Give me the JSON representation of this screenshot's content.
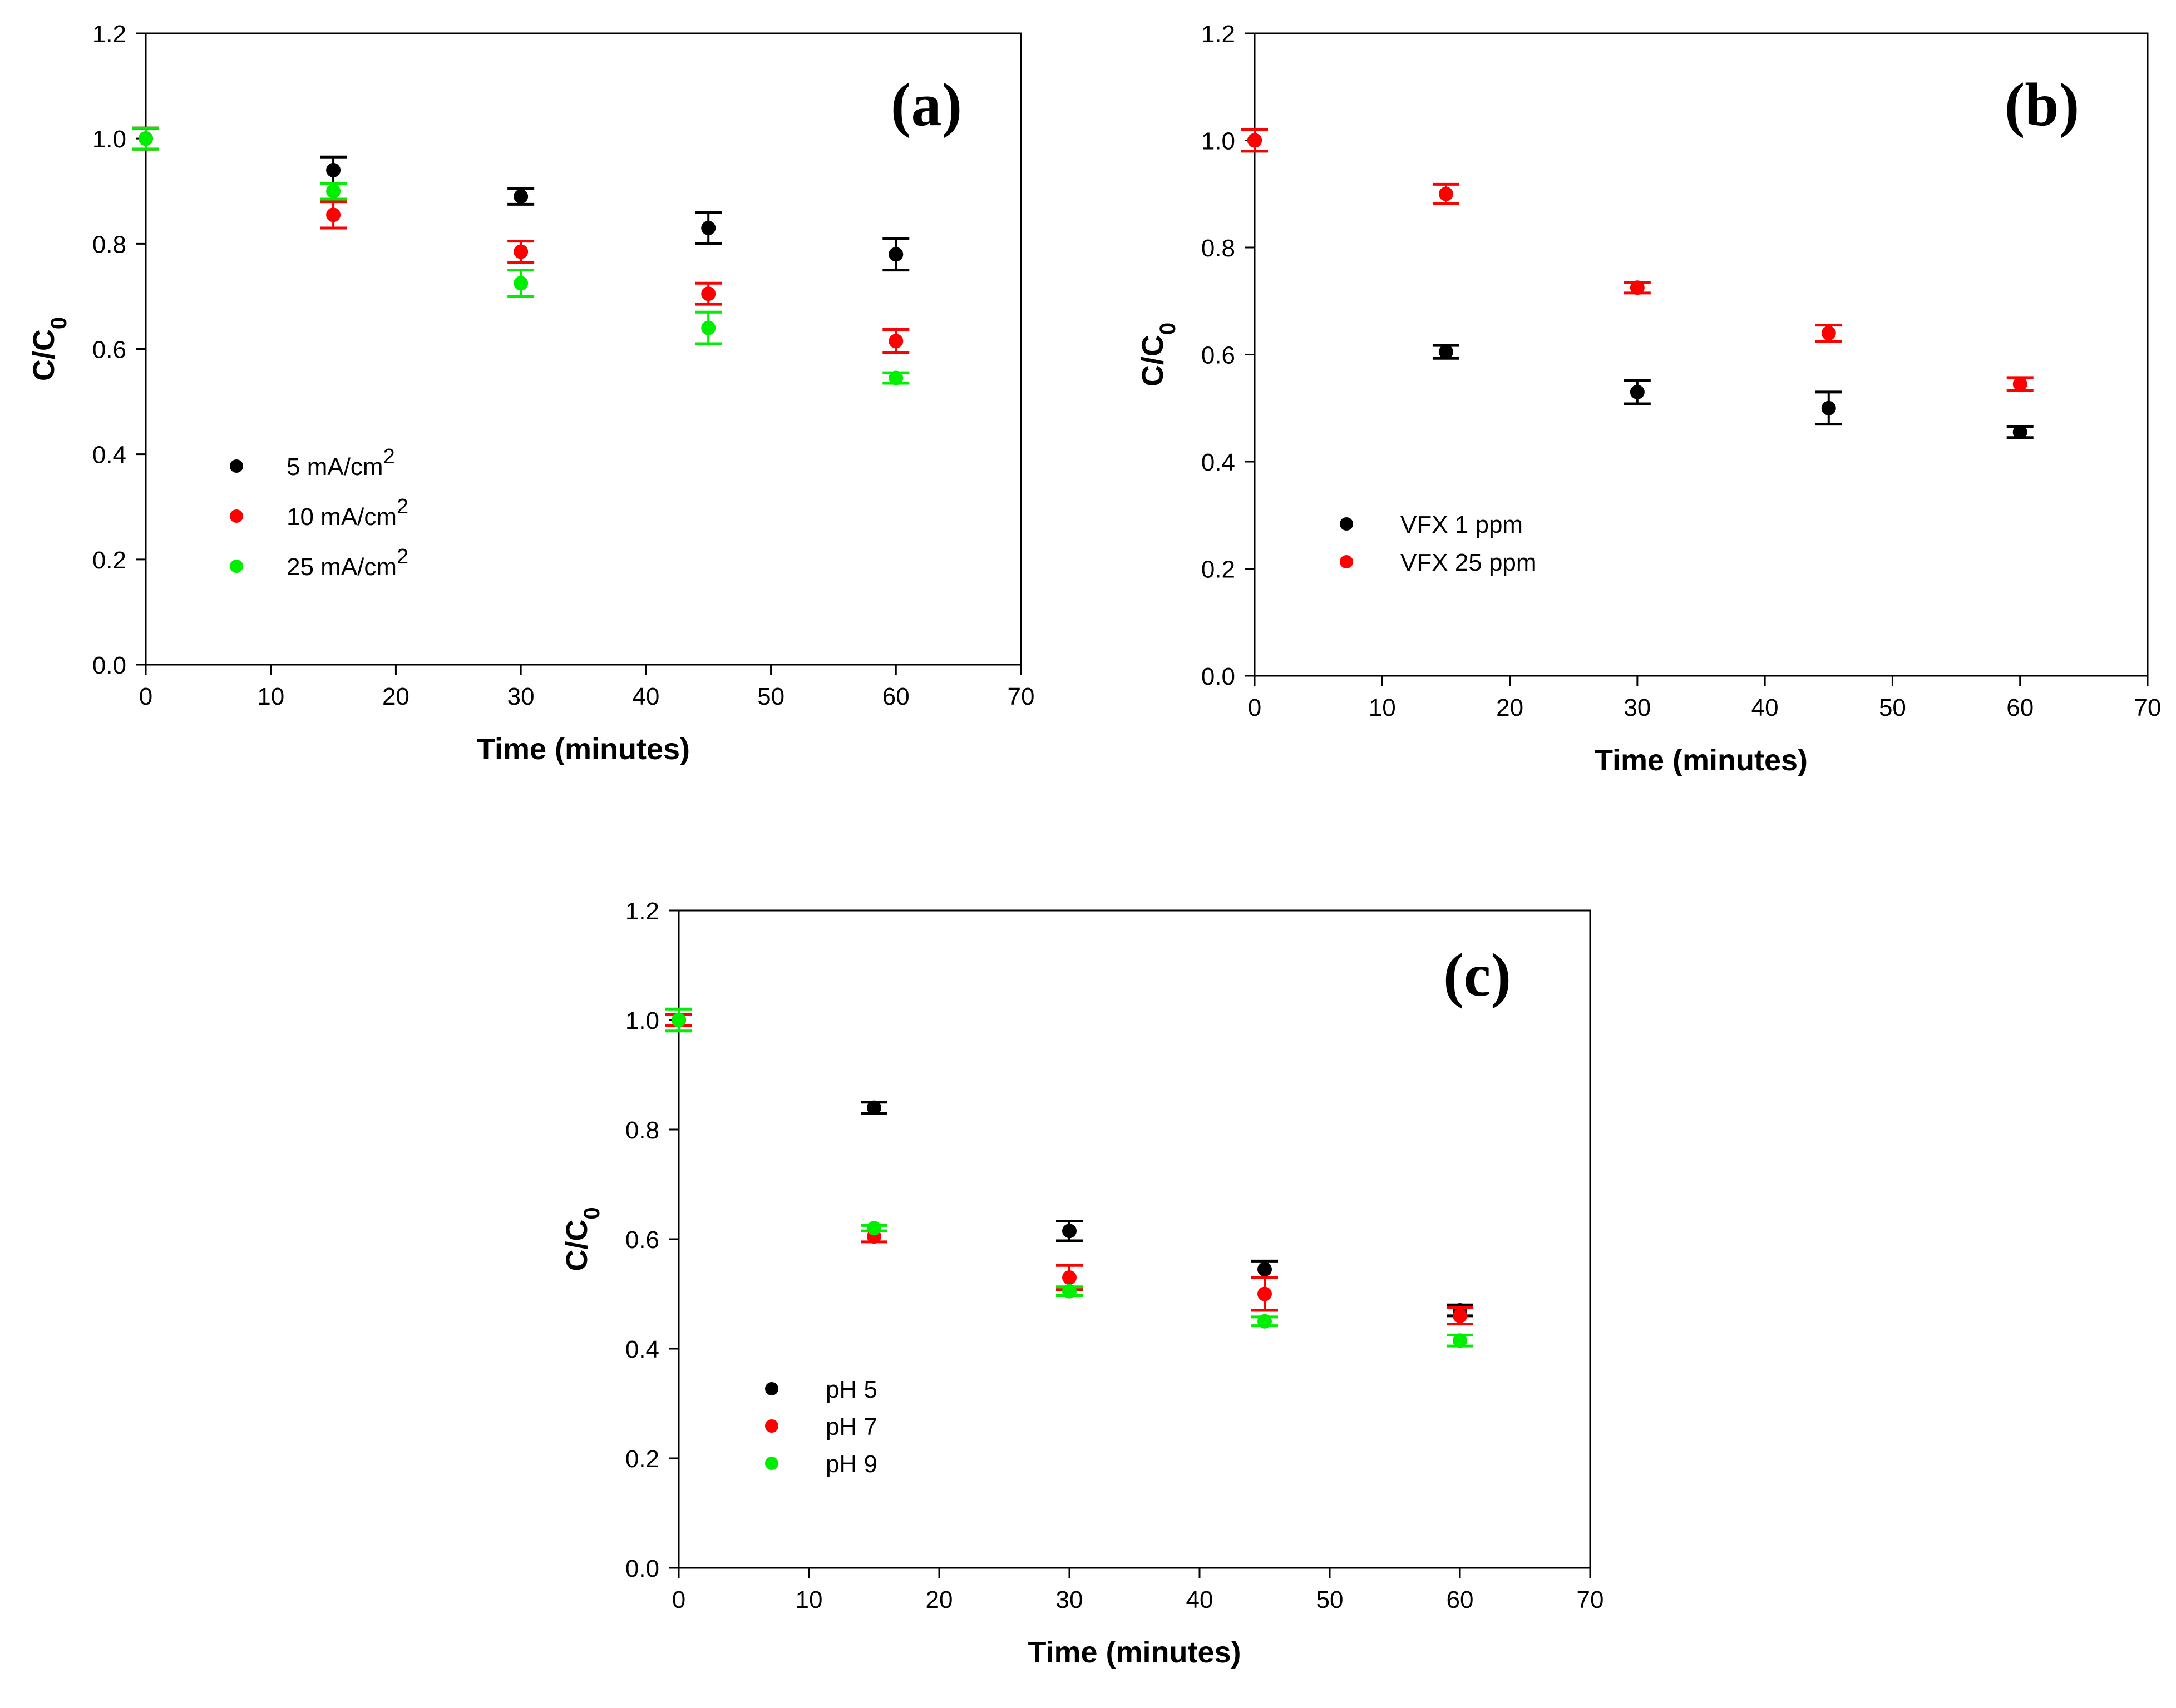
{
  "chart_data": [
    {
      "type": "scatter",
      "panel_label": "(a)",
      "xlabel": "Time (minutes)",
      "ylabel": {
        "main": "C/C",
        "sub": "0"
      },
      "xlim": [
        0,
        70
      ],
      "ylim": [
        0,
        1.2
      ],
      "xticks": [
        "0",
        "10",
        "20",
        "30",
        "40",
        "50",
        "60",
        "70"
      ],
      "yticks": [
        "0.0",
        "0.2",
        "0.4",
        "0.6",
        "0.8",
        "1.0",
        "1.2"
      ],
      "legend_position": "middle-left",
      "series": [
        {
          "name": "5 mA/cm",
          "sup": "2",
          "color": "#000000",
          "x": [
            0,
            15,
            30,
            45,
            60
          ],
          "y": [
            1.0,
            0.94,
            0.89,
            0.83,
            0.78
          ],
          "err": [
            0.02,
            0.025,
            0.015,
            0.03,
            0.03
          ]
        },
        {
          "name": "10 mA/cm",
          "sup": "2",
          "color": "#ff0000",
          "x": [
            0,
            15,
            30,
            45,
            60
          ],
          "y": [
            1.0,
            0.855,
            0.785,
            0.705,
            0.615
          ],
          "err": [
            0.02,
            0.025,
            0.02,
            0.02,
            0.022
          ]
        },
        {
          "name": "25 mA/cm",
          "sup": "2",
          "color": "#00ee00",
          "x": [
            0,
            15,
            30,
            45,
            60
          ],
          "y": [
            1.0,
            0.9,
            0.725,
            0.64,
            0.545
          ],
          "err": [
            0.02,
            0.015,
            0.025,
            0.03,
            0.01
          ]
        }
      ]
    },
    {
      "type": "scatter",
      "panel_label": "(b)",
      "xlabel": "Time (minutes)",
      "ylabel": {
        "main": "C/C",
        "sub": "0"
      },
      "xlim": [
        0,
        70
      ],
      "ylim": [
        0,
        1.2
      ],
      "xticks": [
        "0",
        "10",
        "20",
        "30",
        "40",
        "50",
        "60",
        "70"
      ],
      "yticks": [
        "0.0",
        "0.2",
        "0.4",
        "0.6",
        "0.8",
        "1.0",
        "1.2"
      ],
      "legend_position": "lower-left",
      "series": [
        {
          "name": "VFX 1 ppm",
          "sup": "",
          "color": "#000000",
          "x": [
            0,
            15,
            30,
            45,
            60
          ],
          "y": [
            1.0,
            0.605,
            0.53,
            0.5,
            0.455
          ],
          "err": [
            0.02,
            0.012,
            0.022,
            0.03,
            0.01
          ]
        },
        {
          "name": "VFX 25 ppm",
          "sup": "",
          "color": "#ff0000",
          "x": [
            0,
            15,
            30,
            45,
            60
          ],
          "y": [
            1.0,
            0.9,
            0.725,
            0.64,
            0.545
          ],
          "err": [
            0.02,
            0.018,
            0.01,
            0.015,
            0.012
          ]
        }
      ]
    },
    {
      "type": "scatter",
      "panel_label": "(c)",
      "xlabel": "Time (minutes)",
      "ylabel": {
        "main": "C/C",
        "sub": "0"
      },
      "xlim": [
        0,
        70
      ],
      "ylim": [
        0,
        1.2
      ],
      "xticks": [
        "0",
        "10",
        "20",
        "30",
        "40",
        "50",
        "60",
        "70"
      ],
      "yticks": [
        "0.0",
        "0.2",
        "0.4",
        "0.6",
        "0.8",
        "1.0",
        "1.2"
      ],
      "legend_position": "lower-left",
      "series": [
        {
          "name": "pH 5",
          "sup": "",
          "color": "#000000",
          "x": [
            0,
            15,
            30,
            45,
            60
          ],
          "y": [
            1.0,
            0.84,
            0.615,
            0.545,
            0.47
          ],
          "err": [
            0.01,
            0.01,
            0.018,
            0.015,
            0.01
          ]
        },
        {
          "name": "pH 7",
          "sup": "",
          "color": "#ff0000",
          "x": [
            0,
            15,
            30,
            45,
            60
          ],
          "y": [
            1.0,
            0.605,
            0.53,
            0.5,
            0.46
          ],
          "err": [
            0.01,
            0.01,
            0.022,
            0.03,
            0.015
          ]
        },
        {
          "name": "pH 9",
          "sup": "",
          "color": "#00ee00",
          "x": [
            0,
            15,
            30,
            45,
            60
          ],
          "y": [
            1.0,
            0.62,
            0.505,
            0.45,
            0.415
          ],
          "err": [
            0.02,
            0.005,
            0.008,
            0.008,
            0.01
          ]
        }
      ]
    }
  ]
}
